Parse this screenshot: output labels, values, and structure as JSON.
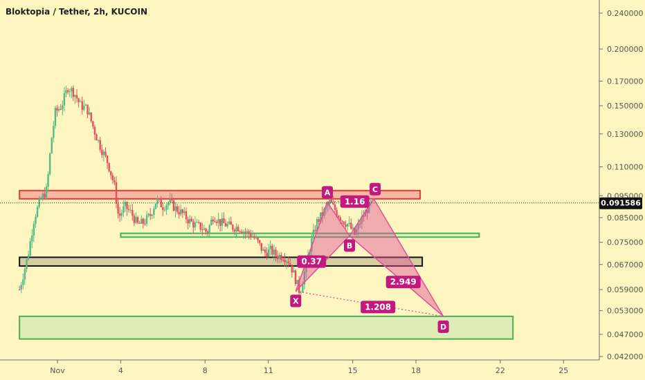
{
  "chart_data": {
    "type": "candlestick",
    "title": "Bloktopia / Tether, 2h, KUCOIN",
    "y_ticks": [
      0.24,
      0.2,
      0.17,
      0.15,
      0.13,
      0.11,
      0.095,
      0.085,
      0.075,
      0.067,
      0.059,
      0.053,
      0.047,
      0.042
    ],
    "y_tick_labels": [
      "0.240000",
      "0.200000",
      "0.170000",
      "0.150000",
      "0.130000",
      "0.110000",
      "0.095000",
      "0.085000",
      "0.075000",
      "0.067000",
      "0.059000",
      "0.053000",
      "0.047000",
      "0.042000"
    ],
    "y_scale": "log",
    "x_range": [
      -0.8,
      27.7
    ],
    "x_ticks": [
      {
        "x": 1,
        "label": "Nov"
      },
      {
        "x": 4,
        "label": "4"
      },
      {
        "x": 8,
        "label": "8"
      },
      {
        "x": 11,
        "label": "11"
      },
      {
        "x": 15,
        "label": "15"
      },
      {
        "x": 18,
        "label": "18"
      },
      {
        "x": 22,
        "label": "22"
      },
      {
        "x": 25,
        "label": "25"
      }
    ],
    "last_price": 0.091586,
    "last_price_label": "0.091586",
    "colors": {
      "up": "#53b987",
      "down": "#eb4d5c",
      "pattern": "#e0509a",
      "label_bg": "#c2187f",
      "background": "#fdf6c0"
    },
    "candle_path": [
      [
        -0.8,
        0.059
      ],
      [
        -0.4,
        0.07
      ],
      [
        -0.1,
        0.085
      ],
      [
        0.2,
        0.093
      ],
      [
        0.5,
        0.098
      ],
      [
        0.7,
        0.125
      ],
      [
        0.9,
        0.145
      ],
      [
        1.2,
        0.15
      ],
      [
        1.5,
        0.165
      ],
      [
        1.8,
        0.16
      ],
      [
        2.1,
        0.15
      ],
      [
        2.4,
        0.148
      ],
      [
        2.8,
        0.13
      ],
      [
        3.1,
        0.12
      ],
      [
        3.4,
        0.112
      ],
      [
        3.7,
        0.1
      ],
      [
        3.9,
        0.085
      ],
      [
        4.2,
        0.09
      ],
      [
        4.5,
        0.087
      ],
      [
        4.8,
        0.082
      ],
      [
        5.1,
        0.083
      ],
      [
        5.4,
        0.086
      ],
      [
        5.7,
        0.093
      ],
      [
        6.0,
        0.09
      ],
      [
        6.3,
        0.092
      ],
      [
        6.6,
        0.089
      ],
      [
        6.9,
        0.087
      ],
      [
        7.2,
        0.084
      ],
      [
        7.5,
        0.082
      ],
      [
        7.8,
        0.081
      ],
      [
        8.1,
        0.079
      ],
      [
        8.4,
        0.086
      ],
      [
        8.7,
        0.083
      ],
      [
        9.0,
        0.082
      ],
      [
        9.3,
        0.081
      ],
      [
        9.6,
        0.081
      ],
      [
        9.9,
        0.079
      ],
      [
        10.2,
        0.078
      ],
      [
        10.5,
        0.075
      ],
      [
        10.8,
        0.071
      ],
      [
        11.1,
        0.072
      ],
      [
        11.4,
        0.07
      ],
      [
        11.7,
        0.07
      ],
      [
        12.0,
        0.068
      ],
      [
        12.3,
        0.062
      ],
      [
        12.5,
        0.058
      ],
      [
        12.8,
        0.067
      ],
      [
        13.0,
        0.074
      ],
      [
        13.3,
        0.083
      ],
      [
        13.6,
        0.087
      ],
      [
        13.9,
        0.092
      ],
      [
        14.2,
        0.088
      ],
      [
        14.5,
        0.084
      ],
      [
        14.8,
        0.082
      ],
      [
        15.1,
        0.078
      ],
      [
        15.4,
        0.084
      ],
      [
        15.7,
        0.089
      ],
      [
        15.9,
        0.092
      ]
    ],
    "zones": [
      {
        "name": "resistance-zone",
        "x0": -0.8,
        "x1": 18.2,
        "y_top": 0.0975,
        "y_bottom": 0.0935,
        "fill": "#f7b8a6",
        "stroke": "#e53935"
      },
      {
        "name": "support-zone-green-mid",
        "x0": 4.0,
        "x1": 21.0,
        "y_top": 0.0785,
        "y_bottom": 0.077,
        "fill": "#dff0c0",
        "stroke": "#4caf50"
      },
      {
        "name": "support-zone-black",
        "x0": -0.8,
        "x1": 18.3,
        "y_top": 0.0695,
        "y_bottom": 0.0665,
        "fill": "#d4cda0",
        "stroke": "#111111"
      },
      {
        "name": "target-zone-green",
        "x0": -0.8,
        "x1": 22.6,
        "y_top": 0.0515,
        "y_bottom": 0.0459,
        "fill": "#dcedb8",
        "stroke": "#4caf50"
      }
    ],
    "pattern_points": {
      "X": {
        "x": 12.3,
        "y": 0.0585
      },
      "A": {
        "x": 13.8,
        "y": 0.092
      },
      "B": {
        "x": 14.85,
        "y": 0.0775
      },
      "C": {
        "x": 16.0,
        "y": 0.0935
      },
      "D": {
        "x": 19.3,
        "y": 0.0515
      }
    },
    "point_labels": [
      "X",
      "A",
      "B",
      "C",
      "D"
    ],
    "ratio_labels": [
      {
        "text": "1.16",
        "x": 15.1,
        "y": 0.0922
      },
      {
        "text": "0.37",
        "x": 13.05,
        "y": 0.068
      },
      {
        "text": "2.949",
        "x": 17.4,
        "y": 0.0613
      },
      {
        "text": "1.208",
        "x": 16.2,
        "y": 0.054
      }
    ]
  }
}
